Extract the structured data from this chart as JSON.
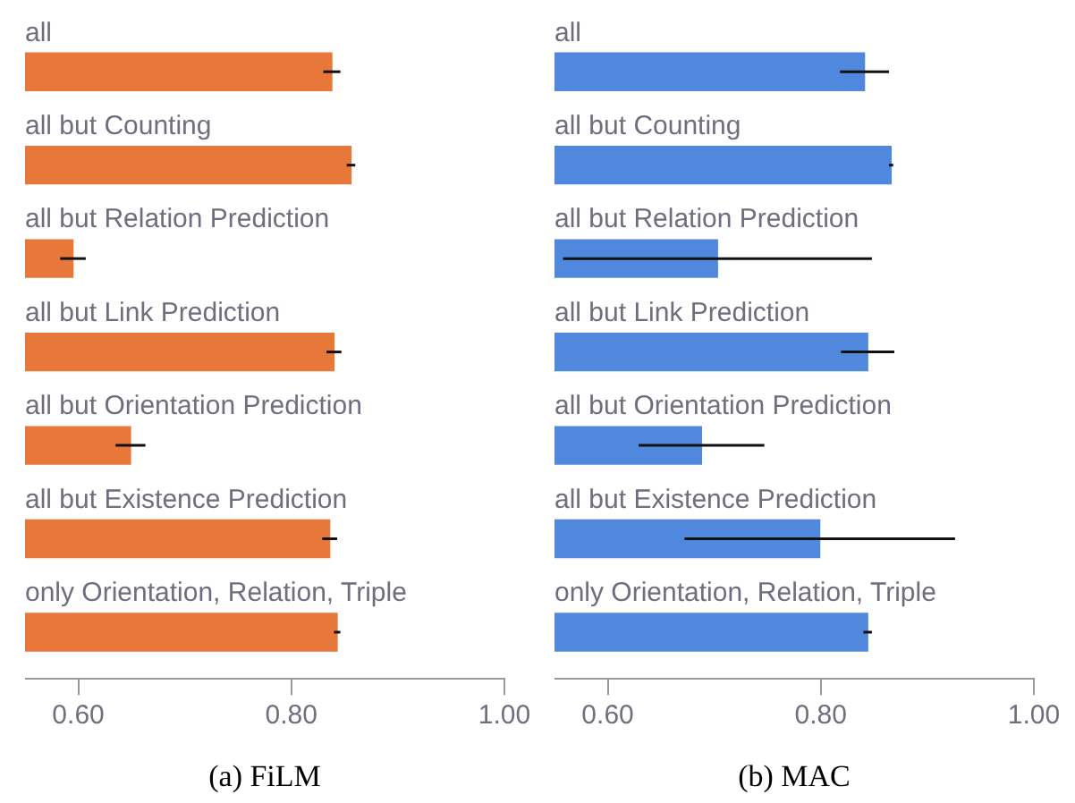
{
  "chart_data": [
    {
      "type": "bar",
      "orientation": "horizontal",
      "xlabel": "(a) FiLM",
      "color": "#e8773a",
      "categories": [
        "all",
        "all but Counting",
        "all but Relation Prediction",
        "all but Link Prediction",
        "all but Orientation Prediction",
        "all but Existence Prediction",
        "only Orientation, Relation, Triple"
      ],
      "values": [
        0.838,
        0.856,
        0.595,
        0.84,
        0.649,
        0.836,
        0.843
      ],
      "errors": [
        0.008,
        0.004,
        0.012,
        0.007,
        0.014,
        0.007,
        0.003
      ],
      "xlim": [
        0.55,
        1.0
      ],
      "xticks": [
        {
          "value": 0.6,
          "label": "0.60"
        },
        {
          "value": 0.8,
          "label": "0.80"
        },
        {
          "value": 1.0,
          "label": "1.00"
        }
      ]
    },
    {
      "type": "bar",
      "orientation": "horizontal",
      "xlabel": "(b) MAC",
      "color": "#5088dd",
      "categories": [
        "all",
        "all but Counting",
        "all but Relation Prediction",
        "all but Link Prediction",
        "all but Orientation Prediction",
        "all but Existence Prediction",
        "only Orientation, Relation, Triple"
      ],
      "values": [
        0.841,
        0.866,
        0.703,
        0.844,
        0.688,
        0.799,
        0.844
      ],
      "errors": [
        0.023,
        0.002,
        0.145,
        0.025,
        0.059,
        0.127,
        0.004
      ],
      "xlim": [
        0.55,
        1.0
      ],
      "xticks": [
        {
          "value": 0.6,
          "label": "0.60"
        },
        {
          "value": 0.8,
          "label": "0.80"
        },
        {
          "value": 1.0,
          "label": "1.00"
        }
      ]
    }
  ]
}
